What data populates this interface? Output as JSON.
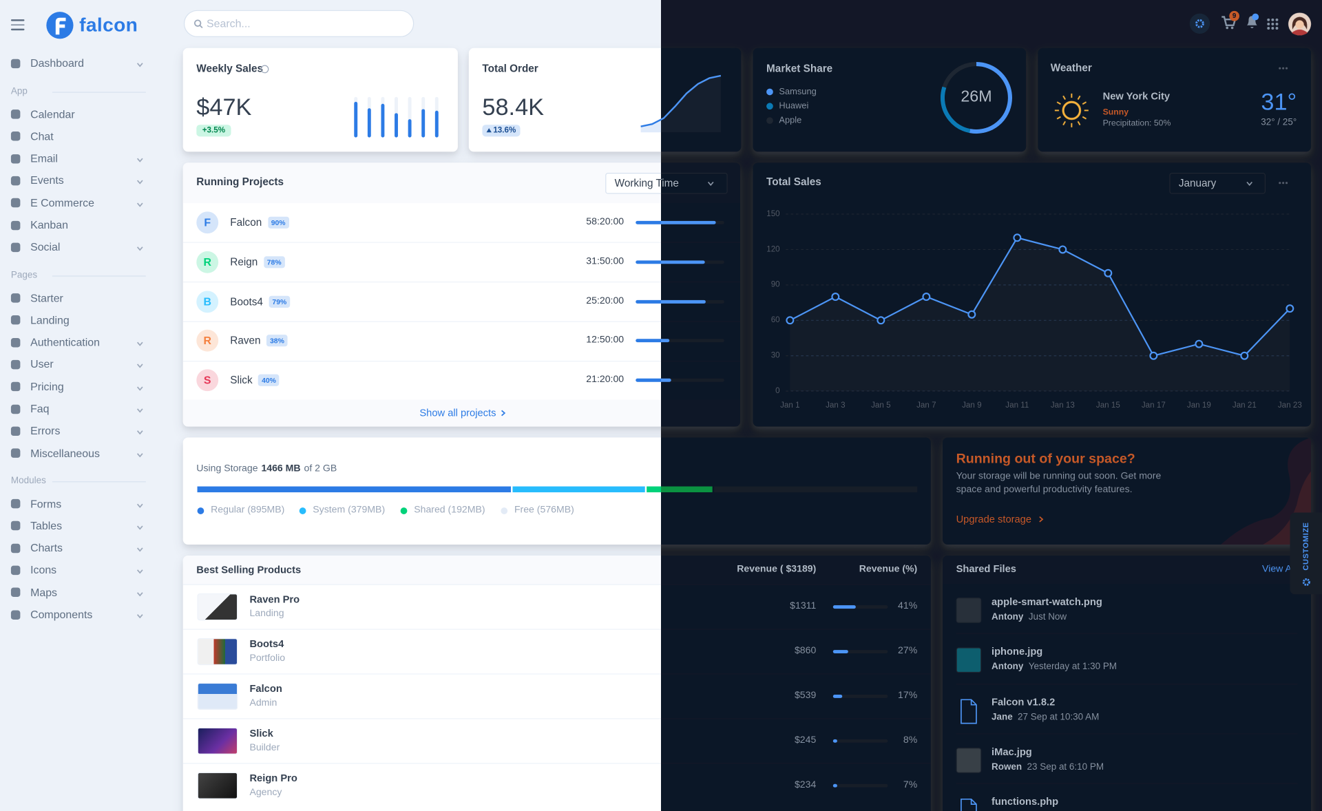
{
  "header": {
    "brand": "falcon",
    "search_placeholder": "Search...",
    "cart_count": 9
  },
  "sidebar": {
    "top": [
      {
        "label": "Dashboard",
        "expandable": true
      }
    ],
    "sections": [
      {
        "title": "App",
        "items": [
          {
            "label": "Calendar",
            "expandable": false
          },
          {
            "label": "Chat",
            "expandable": false
          },
          {
            "label": "Email",
            "expandable": true
          },
          {
            "label": "Events",
            "expandable": true
          },
          {
            "label": "E Commerce",
            "expandable": true
          },
          {
            "label": "Kanban",
            "expandable": false
          },
          {
            "label": "Social",
            "expandable": true
          }
        ]
      },
      {
        "title": "Pages",
        "items": [
          {
            "label": "Starter",
            "expandable": false
          },
          {
            "label": "Landing",
            "expandable": false
          },
          {
            "label": "Authentication",
            "expandable": true
          },
          {
            "label": "User",
            "expandable": true
          },
          {
            "label": "Pricing",
            "expandable": true
          },
          {
            "label": "Faq",
            "expandable": true
          },
          {
            "label": "Errors",
            "expandable": true
          },
          {
            "label": "Miscellaneous",
            "expandable": true
          }
        ]
      },
      {
        "title": "Modules",
        "items": [
          {
            "label": "Forms",
            "expandable": true
          },
          {
            "label": "Tables",
            "expandable": true
          },
          {
            "label": "Charts",
            "expandable": true
          },
          {
            "label": "Icons",
            "expandable": true
          },
          {
            "label": "Maps",
            "expandable": true
          },
          {
            "label": "Components",
            "expandable": true
          }
        ]
      }
    ]
  },
  "weekly_sales": {
    "title": "Weekly Sales",
    "value": "$47K",
    "change": "+3.5%",
    "chart": {
      "type": "bar",
      "values": [
        88,
        72,
        83,
        60,
        45,
        70,
        66
      ],
      "ylim": [
        0,
        100
      ],
      "color": "#2c7be5"
    }
  },
  "total_order": {
    "title": "Total Order",
    "value": "58.4K",
    "change": "13.6%",
    "chart": {
      "type": "line",
      "values": [
        10,
        14,
        24,
        44,
        66,
        82,
        92,
        96
      ],
      "ylim": [
        0,
        100
      ],
      "color": "#2c7be5"
    }
  },
  "market_share": {
    "title": "Market Share",
    "center_label": "26M",
    "chart": {
      "type": "pie",
      "categories": [
        "Samsung",
        "Huawei",
        "Apple"
      ],
      "values": [
        53,
        27,
        20
      ],
      "colors": [
        "#2c7be5",
        "#27bcfd",
        "#d8e2ef"
      ]
    }
  },
  "weather": {
    "title": "Weather",
    "city": "New York City",
    "condition": "Sunny",
    "precipitation": "Precipitation: 50%",
    "temperature": "31°",
    "range": "32° / 25°"
  },
  "running_projects": {
    "title": "Running Projects",
    "filter": "Working Time",
    "footer": "Show all projects",
    "rows": [
      {
        "initial": "F",
        "name": "Falcon",
        "progress": 90,
        "progress_label": "90%",
        "time": "58:20:00"
      },
      {
        "initial": "R",
        "name": "Reign",
        "progress": 78,
        "progress_label": "78%",
        "time": "31:50:00"
      },
      {
        "initial": "B",
        "name": "Boots4",
        "progress": 79,
        "progress_label": "79%",
        "time": "25:20:00"
      },
      {
        "initial": "R",
        "name": "Raven",
        "progress": 38,
        "progress_label": "38%",
        "time": "12:50:00"
      },
      {
        "initial": "S",
        "name": "Slick",
        "progress": 40,
        "progress_label": "40%",
        "time": "21:20:00"
      }
    ]
  },
  "total_sales": {
    "title": "Total Sales",
    "filter": "January",
    "chart": {
      "type": "line",
      "categories": [
        "Jan 1",
        "Jan 3",
        "Jan 5",
        "Jan 7",
        "Jan 9",
        "Jan 11",
        "Jan 13",
        "Jan 15",
        "Jan 17",
        "Jan 19",
        "Jan 21",
        "Jan 23"
      ],
      "values": [
        60,
        80,
        60,
        80,
        65,
        130,
        120,
        100,
        30,
        40,
        30,
        70
      ],
      "ylim": [
        0,
        150
      ],
      "yticks": [
        0,
        30,
        60,
        90,
        120,
        150
      ],
      "grid": true,
      "color": "#2c7be5"
    }
  },
  "storage": {
    "label": "Using Storage",
    "used": "1466 MB",
    "total": "of 2 GB",
    "chart": {
      "type": "bar",
      "segments": [
        {
          "label": "Regular (895MB)",
          "value": 895,
          "color": "#2c7be5"
        },
        {
          "label": "System (379MB)",
          "value": 379,
          "color": "#27bcfd"
        },
        {
          "label": "Shared (192MB)",
          "value": 192,
          "color": "#00d27a"
        },
        {
          "label": "Free (576MB)",
          "value": 576,
          "color": "#e3ebf6"
        }
      ]
    }
  },
  "upgrade": {
    "title": "Running out of your space?",
    "text": "Your storage will be running out soon. Get more space and powerful productivity features.",
    "link": "Upgrade storage"
  },
  "best_selling": {
    "title": "Best Selling Products",
    "revenue_header": "Revenue ( $3189)",
    "share_header": "Revenue (%)",
    "rows": [
      {
        "name": "Raven Pro",
        "category": "Landing",
        "revenue": 1311,
        "revenue_label": "$1311",
        "share": 41,
        "share_label": "41%"
      },
      {
        "name": "Boots4",
        "category": "Portfolio",
        "revenue": 860,
        "revenue_label": "$860",
        "share": 27,
        "share_label": "27%"
      },
      {
        "name": "Falcon",
        "category": "Admin",
        "revenue": 539,
        "revenue_label": "$539",
        "share": 17,
        "share_label": "17%"
      },
      {
        "name": "Slick",
        "category": "Builder",
        "revenue": 245,
        "revenue_label": "$245",
        "share": 8,
        "share_label": "8%"
      },
      {
        "name": "Reign Pro",
        "category": "Agency",
        "revenue": 234,
        "revenue_label": "$234",
        "share": 7,
        "share_label": "7%"
      }
    ]
  },
  "shared_files": {
    "title": "Shared Files",
    "link": "View All",
    "files": [
      {
        "name": "apple-smart-watch.png",
        "user": "Antony",
        "time": "Just Now"
      },
      {
        "name": "iphone.jpg",
        "user": "Antony",
        "time": "Yesterday at 1:30 PM"
      },
      {
        "name": "Falcon v1.8.2",
        "user": "Jane",
        "time": "27 Sep at 10:30 AM"
      },
      {
        "name": "iMac.jpg",
        "user": "Rowen",
        "time": "23 Sep at 6:10 PM"
      },
      {
        "name": "functions.php"
      }
    ]
  },
  "customize": "CUSTOMIZE"
}
